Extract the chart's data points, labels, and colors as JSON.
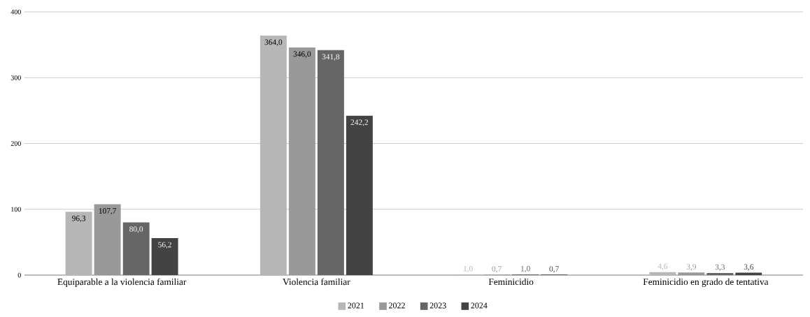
{
  "chart_data": {
    "type": "bar",
    "categories": [
      "Equiparable a la violencia familiar",
      "Violencia familiar",
      "Feminicidio",
      "Feminicidio en grado de tentativa"
    ],
    "series": [
      {
        "name": "2021",
        "color": "#b7b7b7",
        "values": [
          96.3,
          364.0,
          1.0,
          4.6
        ],
        "value_labels": [
          "96,3",
          "364,0",
          "1,0",
          "4,6"
        ]
      },
      {
        "name": "2022",
        "color": "#999999",
        "values": [
          107.7,
          346.0,
          0.7,
          3.9
        ],
        "value_labels": [
          "107,7",
          "346,0",
          "0,7",
          "3,9"
        ]
      },
      {
        "name": "2023",
        "color": "#666666",
        "values": [
          80.0,
          341.8,
          1.0,
          3.3
        ],
        "value_labels": [
          "80,0",
          "341,8",
          "1,0",
          "3,3"
        ]
      },
      {
        "name": "2024",
        "color": "#434343",
        "values": [
          56.2,
          242.2,
          0.7,
          3.6
        ],
        "value_labels": [
          "56,2",
          "242,2",
          "0,7",
          "3,6"
        ]
      }
    ],
    "ylim": [
      0,
      400
    ],
    "yticks": [
      0,
      100,
      200,
      300,
      400
    ],
    "grid": "y",
    "legend": "bottom"
  }
}
